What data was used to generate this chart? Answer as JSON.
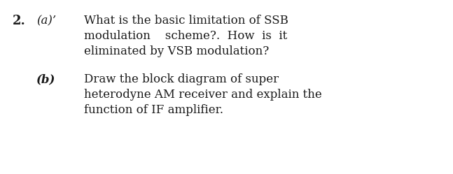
{
  "background_color": "#ffffff",
  "text_color": "#1a1a1a",
  "question_number": "2.",
  "part_a_label": "(a)’",
  "part_a_line1": "What is the basic limitation of SSB",
  "part_a_line2": "modulation    scheme?.  How  is  it",
  "part_a_line3": "eliminated by VSB modulation?",
  "part_b_label": "(b)",
  "part_b_line1": "Draw the block diagram of super",
  "part_b_line2": "heterodyne AM receiver and explain the",
  "part_b_line3": "function of IF amplifier.",
  "font_size_number": 13,
  "font_size_label": 12,
  "font_size_text": 12
}
